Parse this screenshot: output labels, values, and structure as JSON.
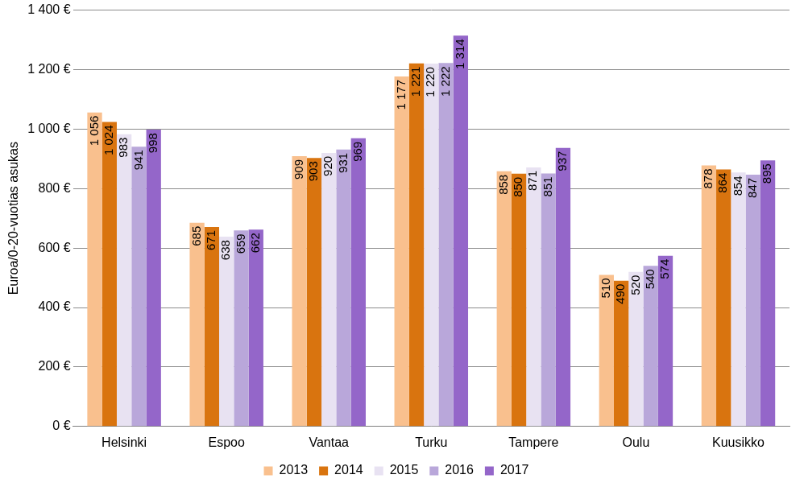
{
  "chart_data": {
    "type": "bar",
    "y_label": "Euroa/0-20-vuotias asukas",
    "categories": [
      "Helsinki",
      "Espoo",
      "Vantaa",
      "Turku",
      "Tampere",
      "Oulu",
      "Kuusikko"
    ],
    "series": [
      {
        "name": "2013",
        "color": "#f9c08e",
        "values": [
          1056,
          685,
          909,
          1177,
          858,
          510,
          878
        ],
        "value_labels": [
          "1 056",
          "685",
          "909",
          "1 177",
          "858",
          "510",
          "878"
        ]
      },
      {
        "name": "2014",
        "color": "#d9740f",
        "values": [
          1024,
          671,
          903,
          1221,
          850,
          490,
          864
        ],
        "value_labels": [
          "1 024",
          "671",
          "903",
          "1 221",
          "850",
          "490",
          "864"
        ]
      },
      {
        "name": "2015",
        "color": "#e8e2f2",
        "values": [
          983,
          638,
          920,
          1220,
          871,
          520,
          854
        ],
        "value_labels": [
          "983",
          "638",
          "920",
          "1 220",
          "871",
          "520",
          "854"
        ]
      },
      {
        "name": "2016",
        "color": "#b9a7da",
        "values": [
          941,
          659,
          931,
          1222,
          851,
          540,
          847
        ],
        "value_labels": [
          "941",
          "659",
          "931",
          "1 222",
          "851",
          "540",
          "847"
        ]
      },
      {
        "name": "2017",
        "color": "#9466c9",
        "values": [
          998,
          662,
          969,
          1314,
          937,
          574,
          895
        ],
        "value_labels": [
          "998",
          "662",
          "969",
          "1 314",
          "937",
          "574",
          "895"
        ]
      }
    ],
    "ylim": [
      0,
      1400
    ],
    "yticks": [
      {
        "value": 0,
        "label": "0 €"
      },
      {
        "value": 200,
        "label": "200 €"
      },
      {
        "value": 400,
        "label": "400 €"
      },
      {
        "value": 600,
        "label": "600 €"
      },
      {
        "value": 800,
        "label": "800 €"
      },
      {
        "value": 1000,
        "label": "1 000 €"
      },
      {
        "value": 1200,
        "label": "1 200 €"
      },
      {
        "value": 1400,
        "label": "1 400 €"
      }
    ],
    "grid": true,
    "legend": "bottom",
    "data_labels": true
  }
}
